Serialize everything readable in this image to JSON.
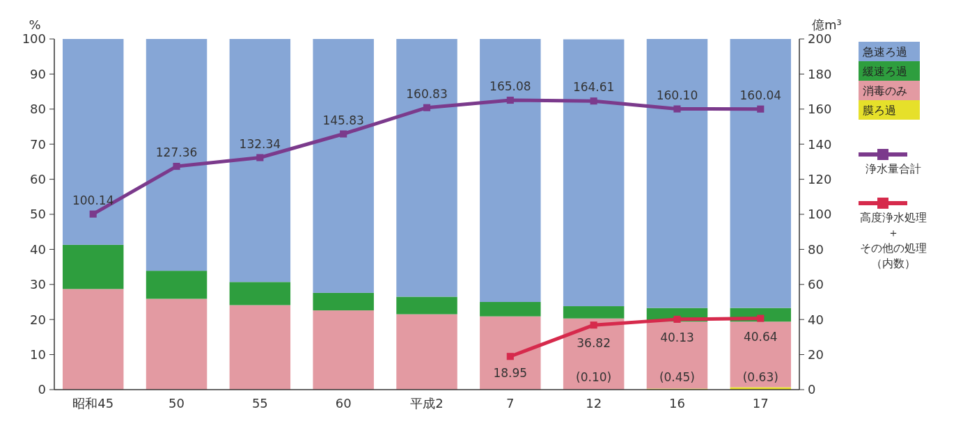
{
  "chart_data": {
    "type": "bar",
    "stacked": true,
    "ylabel": "%",
    "y2label": "億m³",
    "categories": [
      "昭和45",
      "50",
      "55",
      "60",
      "平成2",
      "7",
      "12",
      "16",
      "17"
    ],
    "ylim": [
      0,
      100
    ],
    "yticks": [
      0,
      10,
      20,
      30,
      40,
      50,
      60,
      70,
      80,
      90,
      100
    ],
    "y2lim": [
      0,
      200
    ],
    "y2ticks": [
      0,
      20,
      40,
      60,
      80,
      100,
      120,
      140,
      160,
      180,
      200
    ],
    "legend": "right",
    "marker": "square",
    "grid": false,
    "annotations": [
      "(0.10)",
      "(0.45)",
      "(0.63)"
    ],
    "series": [
      {
        "name": "膜ろ過",
        "color": "#e6e02a",
        "values": [
          0,
          0,
          0,
          0,
          0,
          0,
          null,
          0.3,
          0.7
        ]
      },
      {
        "name": "消毒のみ",
        "color": "#e39aa2",
        "values": [
          28.7,
          25.9,
          24.1,
          22.6,
          21.5,
          20.9,
          20.3,
          19.1,
          18.7
        ]
      },
      {
        "name": "緩速ろ過",
        "color": "#2e9e3e",
        "values": [
          12.6,
          8.0,
          6.6,
          5.0,
          5.0,
          4.1,
          3.5,
          3.9,
          3.9
        ]
      },
      {
        "name": "急速ろ過",
        "color": "#86a6d6",
        "values": [
          58.7,
          66.1,
          69.3,
          72.4,
          73.5,
          75.0,
          76.1,
          76.7,
          76.7
        ]
      },
      {
        "name": "浄水量合計",
        "type": "line",
        "axis": "y2",
        "color": "#7b3a8c",
        "values": [
          100.14,
          127.36,
          132.34,
          145.83,
          160.83,
          165.08,
          164.61,
          160.1,
          160.04
        ],
        "value_labels": [
          "100.14",
          "127.36",
          "132.34",
          "145.83",
          "160.83",
          "165.08",
          "164.61",
          "160.10",
          "160.04"
        ]
      },
      {
        "name": "高度浄水処理＋その他の処理（内数）",
        "type": "line",
        "axis": "y2",
        "color": "#d62a4c",
        "values": [
          null,
          null,
          null,
          null,
          null,
          18.95,
          36.82,
          40.13,
          40.64
        ],
        "value_labels": [
          null,
          null,
          null,
          null,
          null,
          "18.95",
          "36.82",
          "40.13",
          "40.64"
        ]
      }
    ]
  }
}
